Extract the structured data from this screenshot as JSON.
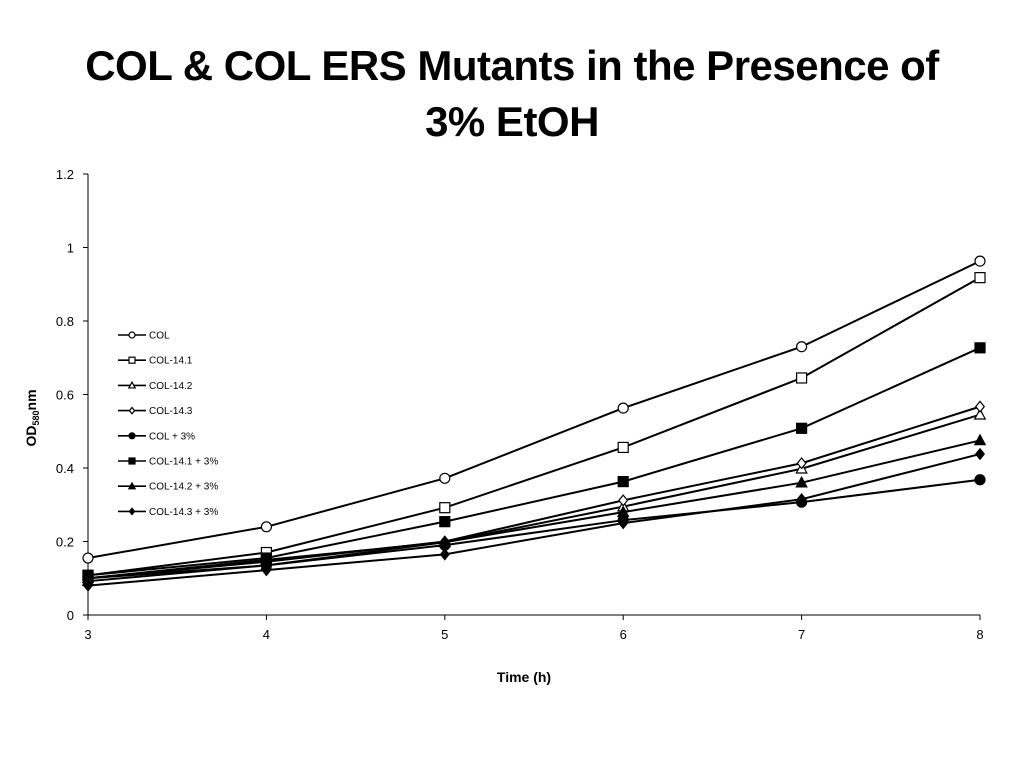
{
  "slide": {
    "title_line1": "COL & COL ERS Mutants in the Presence of",
    "title_line2": "3% EtOH"
  },
  "chart_data": {
    "type": "line",
    "x": [
      3,
      4,
      5,
      6,
      7,
      8
    ],
    "xlabel": "Time (h)",
    "ylabel_main": "OD",
    "ylabel_sub": "580",
    "ylabel_unit": "nm",
    "xlim": [
      3,
      8
    ],
    "ylim": [
      0,
      1.2
    ],
    "xticks": [
      "3",
      "4",
      "5",
      "6",
      "7",
      "8"
    ],
    "yticks": [
      "0",
      "0.2",
      "0.4",
      "0.6",
      "0.8",
      "1",
      "1.2"
    ],
    "grid": false,
    "legend_position": "upper-left",
    "series": [
      {
        "name": "COL",
        "marker": "circle-open",
        "values": [
          0.155,
          0.24,
          0.372,
          0.563,
          0.73,
          0.963
        ]
      },
      {
        "name": "COL-14.1",
        "marker": "square-open",
        "values": [
          0.108,
          0.17,
          0.292,
          0.456,
          0.645,
          0.918
        ]
      },
      {
        "name": "COL-14.2",
        "marker": "triangle-open",
        "values": [
          0.1,
          0.15,
          0.198,
          0.295,
          0.398,
          0.545
        ]
      },
      {
        "name": "COL-14.3",
        "marker": "diamond-open",
        "values": [
          0.1,
          0.145,
          0.2,
          0.312,
          0.413,
          0.567
        ]
      },
      {
        "name": "COL + 3%",
        "marker": "circle-filled",
        "values": [
          0.1,
          0.135,
          0.19,
          0.258,
          0.307,
          0.368
        ]
      },
      {
        "name": "COL-14.1 + 3%",
        "marker": "square-filled",
        "values": [
          0.108,
          0.155,
          0.254,
          0.363,
          0.508,
          0.727
        ]
      },
      {
        "name": "COL-14.2 + 3%",
        "marker": "triangle-filled",
        "values": [
          0.092,
          0.135,
          0.198,
          0.28,
          0.36,
          0.475
        ]
      },
      {
        "name": "COL-14.3 + 3%",
        "marker": "diamond-filled",
        "values": [
          0.08,
          0.122,
          0.165,
          0.25,
          0.315,
          0.438
        ]
      }
    ]
  }
}
